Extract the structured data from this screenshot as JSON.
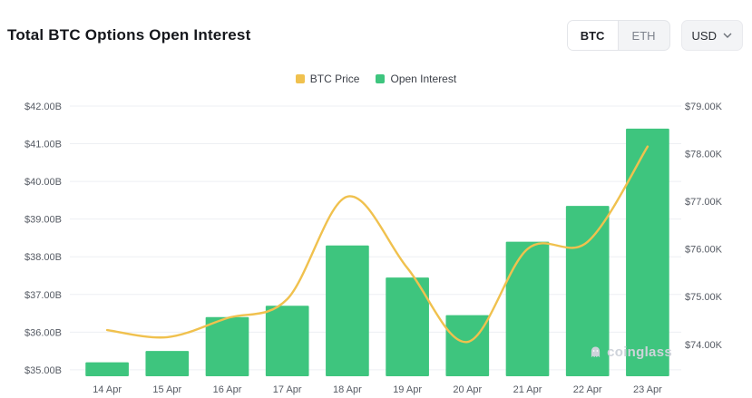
{
  "header": {
    "title": "Total BTC Options Open Interest",
    "coin_toggle": {
      "options": [
        "BTC",
        "ETH"
      ],
      "selected": "BTC"
    },
    "currency_dropdown": {
      "value": "USD"
    }
  },
  "legend": {
    "items": [
      {
        "label": "BTC Price",
        "color": "#F0C14E"
      },
      {
        "label": "Open Interest",
        "color": "#3EC57E"
      }
    ]
  },
  "watermark": {
    "text": "coinglass"
  },
  "chart_data": {
    "type": "combo (bar + line)",
    "title": "Total BTC Options Open Interest",
    "categories": [
      "14 Apr",
      "15 Apr",
      "16 Apr",
      "17 Apr",
      "18 Apr",
      "19 Apr",
      "20 Apr",
      "21 Apr",
      "22 Apr",
      "23 Apr"
    ],
    "series": [
      {
        "name": "Open Interest",
        "type": "bar",
        "axis": "left",
        "color": "#3EC57E",
        "unit": "$B",
        "values": [
          35.2,
          35.5,
          36.4,
          36.7,
          38.3,
          37.45,
          36.45,
          38.4,
          39.35,
          41.4
        ]
      },
      {
        "name": "BTC Price",
        "type": "line",
        "axis": "right",
        "color": "#F0C14E",
        "unit": "$K",
        "values": [
          74.3,
          74.15,
          74.55,
          74.95,
          77.1,
          75.6,
          74.05,
          76.0,
          76.15,
          78.15
        ]
      }
    ],
    "left_axis": {
      "tick_labels": [
        "$42.00B",
        "$41.00B",
        "$40.00B",
        "$39.00B",
        "$38.00B",
        "$37.00B",
        "$36.00B",
        "$35.00B"
      ],
      "tick_values": [
        42,
        41,
        40,
        39,
        38,
        37,
        36,
        35
      ],
      "max": 42,
      "min": 34.83
    },
    "right_axis": {
      "tick_labels": [
        "$79.00K",
        "$78.00K",
        "$77.00K",
        "$76.00K",
        "$75.00K",
        "$74.00K"
      ],
      "tick_values": [
        79,
        78,
        77,
        76,
        75,
        74
      ],
      "max": 79,
      "min": 73.33
    },
    "grid": true,
    "legend_position": "top-center"
  }
}
